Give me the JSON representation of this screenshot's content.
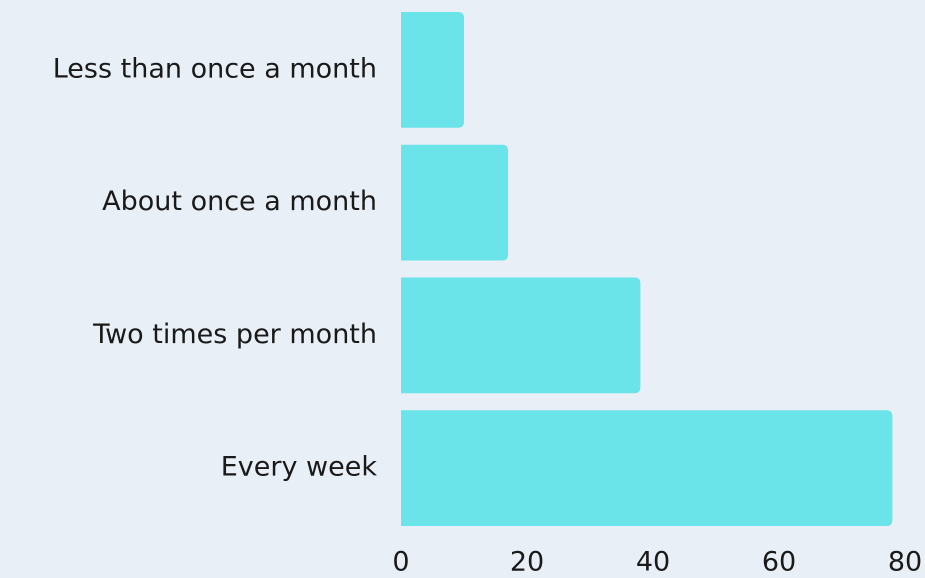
{
  "chart_data": {
    "type": "bar",
    "orientation": "horizontal",
    "categories": [
      "Less than once a month",
      "About once a month",
      "Two times per month",
      "Every week"
    ],
    "values": [
      10,
      17,
      38,
      78
    ],
    "color": "#6ae4e8",
    "xlim": [
      0,
      80
    ],
    "xticks": [
      0,
      20,
      40,
      60,
      80
    ],
    "grid": false
  }
}
